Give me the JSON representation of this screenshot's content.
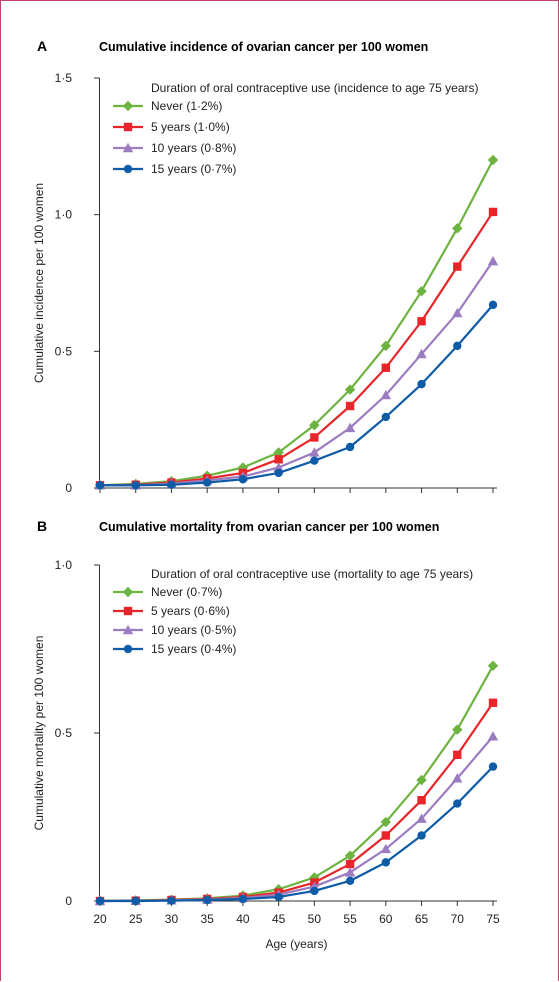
{
  "colors": {
    "border": "#c0446c",
    "axis": "#333333"
  },
  "x_axis": {
    "label": "Age (years)",
    "ticks": [
      "20",
      "25",
      "30",
      "35",
      "40",
      "45",
      "50",
      "55",
      "60",
      "65",
      "70",
      "75"
    ]
  },
  "chart_data": [
    {
      "type": "line",
      "panel": "A",
      "title": "Cumulative incidence of ovarian cancer per 100 women",
      "xlabel": "",
      "ylabel": "Cumulative incidence per 100 women",
      "ylim": [
        0,
        1.5
      ],
      "yticks": [
        {
          "v": 0,
          "label": "0"
        },
        {
          "v": 0.5,
          "label": "0·5"
        },
        {
          "v": 1.0,
          "label": "1·0"
        },
        {
          "v": 1.5,
          "label": "1·5"
        }
      ],
      "legend_title": "Duration of oral contraceptive use (incidence to age 75 years)",
      "legend_position": "top-left",
      "x": [
        20,
        25,
        30,
        35,
        40,
        45,
        50,
        55,
        60,
        65,
        70,
        75
      ],
      "series": [
        {
          "name": "Never (1·2%)",
          "color": "#6db33f",
          "marker": "diamond",
          "values": [
            0.01,
            0.015,
            0.025,
            0.045,
            0.075,
            0.13,
            0.23,
            0.36,
            0.52,
            0.72,
            0.95,
            1.2
          ]
        },
        {
          "name": "5 years (1·0%)",
          "color": "#e8262a",
          "marker": "square",
          "values": [
            0.01,
            0.012,
            0.02,
            0.035,
            0.055,
            0.105,
            0.185,
            0.3,
            0.44,
            0.61,
            0.81,
            1.01
          ]
        },
        {
          "name": "10 years (0·8%)",
          "color": "#9b7cc0",
          "marker": "triangle",
          "values": [
            0.01,
            0.01,
            0.016,
            0.028,
            0.042,
            0.075,
            0.13,
            0.22,
            0.34,
            0.49,
            0.64,
            0.83
          ]
        },
        {
          "name": "15 years (0·7%)",
          "color": "#0e5ca8",
          "marker": "circle",
          "values": [
            0.01,
            0.01,
            0.012,
            0.02,
            0.032,
            0.055,
            0.1,
            0.15,
            0.26,
            0.38,
            0.52,
            0.67
          ]
        }
      ]
    },
    {
      "type": "line",
      "panel": "B",
      "title": "Cumulative mortality from ovarian cancer per 100 women",
      "xlabel": "Age (years)",
      "ylabel": "Cumulative mortality per 100 women",
      "ylim": [
        0,
        1.0
      ],
      "yticks": [
        {
          "v": 0,
          "label": "0"
        },
        {
          "v": 0.5,
          "label": "0·5"
        },
        {
          "v": 1.0,
          "label": "1·0"
        }
      ],
      "legend_title": "Duration of oral contraceptive use (mortality to age 75 years)",
      "legend_position": "top-left",
      "x": [
        20,
        25,
        30,
        35,
        40,
        45,
        50,
        55,
        60,
        65,
        70,
        75
      ],
      "series": [
        {
          "name": "Never (0·7%)",
          "color": "#6db33f",
          "marker": "diamond",
          "values": [
            0,
            0.002,
            0.004,
            0.008,
            0.016,
            0.035,
            0.07,
            0.135,
            0.235,
            0.36,
            0.51,
            0.7
          ]
        },
        {
          "name": "5 years (0·6%)",
          "color": "#e8262a",
          "marker": "square",
          "values": [
            0,
            0.001,
            0.003,
            0.006,
            0.012,
            0.025,
            0.055,
            0.11,
            0.195,
            0.3,
            0.435,
            0.59
          ]
        },
        {
          "name": "10 years (0·5%)",
          "color": "#9b7cc0",
          "marker": "triangle",
          "values": [
            0,
            0.001,
            0.002,
            0.004,
            0.009,
            0.019,
            0.043,
            0.085,
            0.155,
            0.245,
            0.365,
            0.49
          ]
        },
        {
          "name": "15 years (0·4%)",
          "color": "#0e5ca8",
          "marker": "circle",
          "values": [
            0,
            0,
            0.001,
            0.003,
            0.006,
            0.012,
            0.03,
            0.06,
            0.115,
            0.195,
            0.29,
            0.4
          ]
        }
      ]
    }
  ]
}
